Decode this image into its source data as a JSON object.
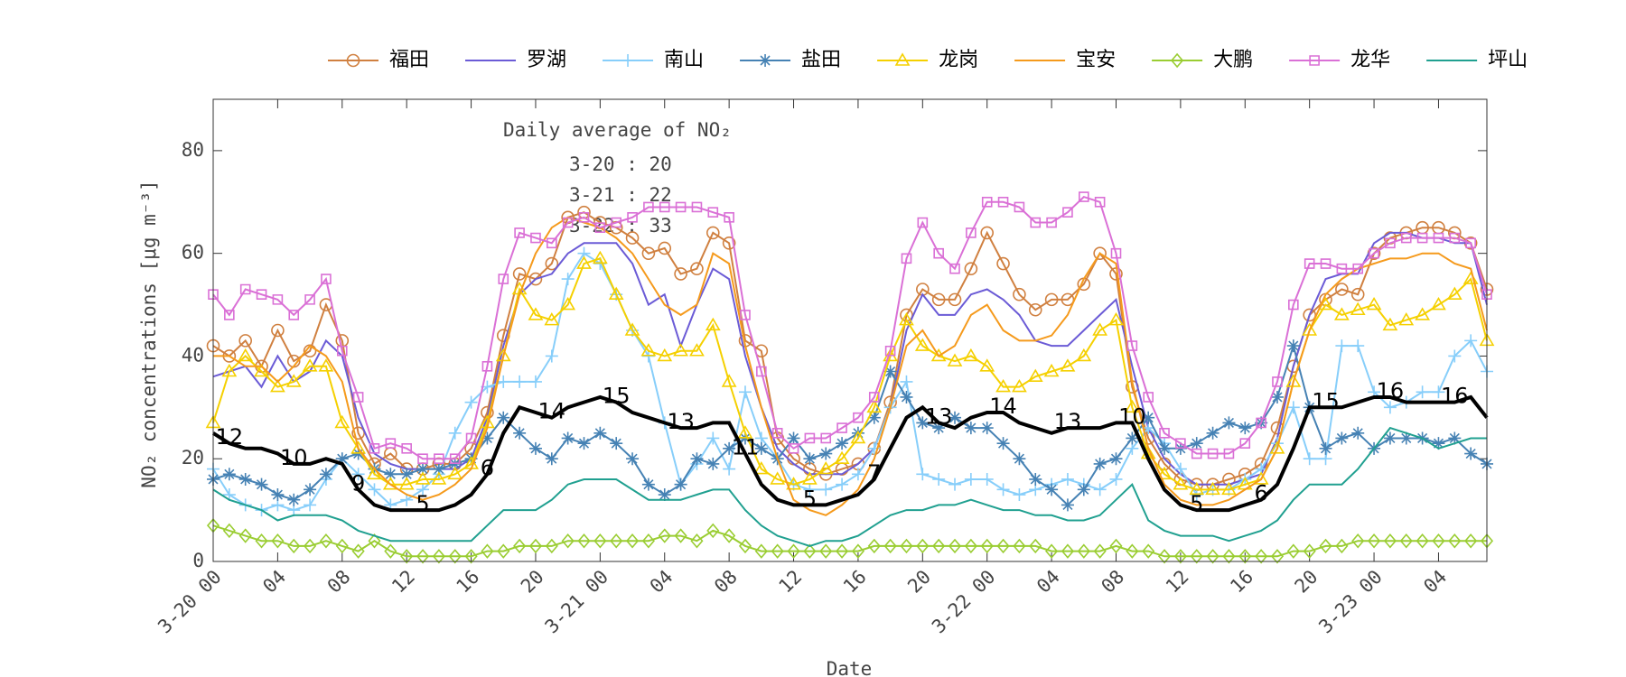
{
  "chart_data": {
    "type": "line",
    "xlabel": "Date",
    "ylabel": "NO₂ concentrations [μg m⁻³]",
    "box_title": "Daily average of NO₂",
    "box_lines": [
      "3-20 : 20",
      "3-21 : 22",
      "3-22 : 33"
    ],
    "xlim": [
      0,
      79
    ],
    "ylim": [
      0,
      90
    ],
    "yticks": [
      0,
      20,
      40,
      60,
      80
    ],
    "xticks": [
      {
        "value": 0,
        "label": "3-20 00"
      },
      {
        "value": 4,
        "label": "04"
      },
      {
        "value": 8,
        "label": "08"
      },
      {
        "value": 12,
        "label": "12"
      },
      {
        "value": 16,
        "label": "16"
      },
      {
        "value": 20,
        "label": "20"
      },
      {
        "value": 24,
        "label": "3-21 00"
      },
      {
        "value": 28,
        "label": "04"
      },
      {
        "value": 32,
        "label": "08"
      },
      {
        "value": 36,
        "label": "12"
      },
      {
        "value": 40,
        "label": "16"
      },
      {
        "value": 44,
        "label": "20"
      },
      {
        "value": 48,
        "label": "3-22 00"
      },
      {
        "value": 52,
        "label": "04"
      },
      {
        "value": 56,
        "label": "08"
      },
      {
        "value": 60,
        "label": "12"
      },
      {
        "value": 64,
        "label": "16"
      },
      {
        "value": 68,
        "label": "20"
      },
      {
        "value": 72,
        "label": "3-23 00"
      },
      {
        "value": 76,
        "label": "04"
      }
    ],
    "x": [
      0,
      1,
      2,
      3,
      4,
      5,
      6,
      7,
      8,
      9,
      10,
      11,
      12,
      13,
      14,
      15,
      16,
      17,
      18,
      19,
      20,
      21,
      22,
      23,
      24,
      25,
      26,
      27,
      28,
      29,
      30,
      31,
      32,
      33,
      34,
      35,
      36,
      37,
      38,
      39,
      40,
      41,
      42,
      43,
      44,
      45,
      46,
      47,
      48,
      49,
      50,
      51,
      52,
      53,
      54,
      55,
      56,
      57,
      58,
      59,
      60,
      61,
      62,
      63,
      64,
      65,
      66,
      67,
      68,
      69,
      70,
      71,
      72,
      73,
      74,
      75,
      76,
      77,
      78,
      79
    ],
    "series": [
      {
        "name": "福田",
        "color": "#d08040",
        "marker": "o",
        "values": [
          42,
          40,
          43,
          38,
          45,
          39,
          41,
          50,
          43,
          25,
          19,
          21,
          18,
          18,
          19,
          19,
          22,
          29,
          44,
          56,
          55,
          58,
          67,
          68,
          66,
          65,
          63,
          60,
          61,
          56,
          57,
          64,
          62,
          43,
          41,
          24,
          20,
          18,
          17,
          18,
          19,
          22,
          31,
          48,
          53,
          51,
          51,
          57,
          64,
          58,
          52,
          49,
          51,
          51,
          54,
          60,
          56,
          34,
          24,
          19,
          16,
          15,
          15,
          16,
          17,
          19,
          26,
          38,
          48,
          51,
          53,
          52,
          60,
          63,
          64,
          65,
          65,
          64,
          62,
          53
        ]
      },
      {
        "name": "罗湖",
        "color": "#6b5bd6",
        "marker": "none",
        "values": [
          36,
          37,
          38,
          34,
          40,
          35,
          37,
          43,
          40,
          28,
          21,
          19,
          18,
          18,
          18,
          18,
          20,
          28,
          42,
          52,
          55,
          56,
          60,
          62,
          62,
          62,
          58,
          50,
          52,
          42,
          50,
          57,
          55,
          40,
          30,
          22,
          19,
          17,
          17,
          17,
          19,
          22,
          30,
          45,
          52,
          48,
          48,
          52,
          53,
          51,
          48,
          43,
          42,
          42,
          45,
          48,
          51,
          38,
          26,
          20,
          17,
          15,
          15,
          15,
          16,
          17,
          24,
          38,
          48,
          55,
          56,
          56,
          62,
          64,
          64,
          63,
          63,
          62,
          62,
          50
        ]
      },
      {
        "name": "南山",
        "color": "#87cefa",
        "marker": "+",
        "values": [
          18,
          13,
          11,
          10,
          11,
          10,
          11,
          16,
          20,
          17,
          14,
          11,
          12,
          14,
          17,
          25,
          31,
          34,
          35,
          35,
          35,
          40,
          55,
          60,
          58,
          52,
          45,
          40,
          27,
          15,
          19,
          24,
          18,
          33,
          24,
          20,
          15,
          14,
          14,
          15,
          17,
          22,
          30,
          35,
          17,
          16,
          15,
          16,
          16,
          14,
          13,
          14,
          15,
          16,
          15,
          14,
          16,
          22,
          26,
          23,
          18,
          13,
          14,
          14,
          16,
          18,
          23,
          30,
          20,
          20,
          42,
          42,
          33,
          30,
          31,
          33,
          33,
          40,
          43,
          37
        ]
      },
      {
        "name": "盐田",
        "color": "#4682b4",
        "marker": "*",
        "values": [
          16,
          17,
          16,
          15,
          13,
          12,
          14,
          17,
          20,
          21,
          18,
          17,
          17,
          18,
          18,
          19,
          20,
          24,
          28,
          25,
          22,
          20,
          24,
          23,
          25,
          23,
          20,
          15,
          13,
          15,
          20,
          19,
          22,
          24,
          22,
          20,
          24,
          20,
          21,
          23,
          25,
          28,
          37,
          32,
          27,
          26,
          28,
          26,
          26,
          23,
          20,
          16,
          14,
          11,
          14,
          19,
          20,
          24,
          28,
          22,
          22,
          23,
          25,
          27,
          26,
          27,
          32,
          42,
          30,
          22,
          24,
          25,
          22,
          24,
          24,
          24,
          23,
          24,
          21,
          19
        ]
      },
      {
        "name": "龙岗",
        "color": "#f5d000",
        "marker": "^",
        "values": [
          27,
          37,
          40,
          37,
          34,
          35,
          38,
          38,
          27,
          22,
          17,
          15,
          15,
          16,
          16,
          17,
          19,
          27,
          40,
          53,
          48,
          47,
          50,
          58,
          59,
          52,
          45,
          41,
          40,
          41,
          41,
          46,
          35,
          25,
          18,
          16,
          15,
          16,
          18,
          20,
          24,
          30,
          40,
          47,
          42,
          40,
          39,
          40,
          38,
          34,
          34,
          36,
          37,
          38,
          40,
          45,
          47,
          30,
          21,
          17,
          15,
          14,
          14,
          14,
          15,
          16,
          22,
          35,
          45,
          50,
          48,
          49,
          50,
          46,
          47,
          48,
          50,
          52,
          55,
          43
        ]
      },
      {
        "name": "宝安",
        "color": "#f59a1c",
        "marker": "none",
        "values": [
          40,
          40,
          38,
          38,
          35,
          38,
          42,
          40,
          35,
          22,
          18,
          15,
          13,
          12,
          13,
          15,
          18,
          26,
          40,
          52,
          60,
          65,
          67,
          66,
          65,
          63,
          60,
          55,
          50,
          48,
          50,
          60,
          58,
          42,
          30,
          20,
          12,
          10,
          9,
          11,
          14,
          20,
          30,
          42,
          45,
          40,
          42,
          48,
          50,
          45,
          43,
          43,
          44,
          48,
          55,
          60,
          58,
          35,
          22,
          15,
          12,
          11,
          11,
          12,
          14,
          16,
          22,
          35,
          45,
          52,
          55,
          57,
          58,
          59,
          59,
          60,
          60,
          58,
          57,
          45
        ]
      },
      {
        "name": "大鹏",
        "color": "#9acd32",
        "marker": "d",
        "values": [
          7,
          6,
          5,
          4,
          4,
          3,
          3,
          4,
          3,
          2,
          4,
          2,
          1,
          1,
          1,
          1,
          1,
          2,
          2,
          3,
          3,
          3,
          4,
          4,
          4,
          4,
          4,
          4,
          5,
          5,
          4,
          6,
          5,
          3,
          2,
          2,
          2,
          2,
          2,
          2,
          2,
          3,
          3,
          3,
          3,
          3,
          3,
          3,
          3,
          3,
          3,
          3,
          2,
          2,
          2,
          2,
          3,
          2,
          2,
          1,
          1,
          1,
          1,
          1,
          1,
          1,
          1,
          2,
          2,
          3,
          3,
          4,
          4,
          4,
          4,
          4,
          4,
          4,
          4,
          4
        ]
      },
      {
        "name": "龙华",
        "color": "#da70d6",
        "marker": "s",
        "values": [
          52,
          48,
          53,
          52,
          51,
          48,
          51,
          55,
          41,
          32,
          22,
          23,
          22,
          20,
          20,
          20,
          24,
          38,
          55,
          64,
          63,
          62,
          66,
          67,
          65,
          66,
          67,
          69,
          69,
          69,
          69,
          68,
          67,
          48,
          37,
          25,
          22,
          24,
          24,
          26,
          28,
          32,
          41,
          59,
          66,
          60,
          57,
          64,
          70,
          70,
          69,
          66,
          66,
          68,
          71,
          70,
          60,
          42,
          32,
          25,
          23,
          21,
          21,
          21,
          23,
          27,
          35,
          50,
          58,
          58,
          57,
          57,
          60,
          62,
          63,
          63,
          63,
          63,
          62,
          52
        ]
      },
      {
        "name": "坪山",
        "color": "#20a090",
        "marker": "none",
        "values": [
          14,
          12,
          11,
          10,
          8,
          9,
          9,
          9,
          8,
          6,
          5,
          4,
          4,
          4,
          4,
          4,
          4,
          7,
          10,
          10,
          10,
          12,
          15,
          16,
          16,
          16,
          14,
          12,
          12,
          12,
          13,
          14,
          14,
          10,
          7,
          5,
          4,
          3,
          4,
          4,
          5,
          7,
          9,
          10,
          10,
          11,
          11,
          12,
          11,
          10,
          10,
          9,
          9,
          8,
          8,
          9,
          12,
          15,
          8,
          6,
          5,
          5,
          5,
          4,
          5,
          6,
          8,
          12,
          15,
          15,
          15,
          18,
          22,
          26,
          25,
          24,
          22,
          23,
          24,
          24
        ]
      }
    ],
    "average": {
      "color": "#000000",
      "values": [
        25,
        23,
        22,
        22,
        21,
        19,
        19,
        20,
        19,
        14,
        11,
        10,
        10,
        10,
        10,
        11,
        13,
        17,
        25,
        30,
        29,
        28,
        30,
        31,
        32,
        31,
        29,
        28,
        27,
        26,
        26,
        27,
        27,
        21,
        15,
        12,
        11,
        11,
        11,
        12,
        13,
        16,
        22,
        28,
        30,
        27,
        26,
        28,
        29,
        29,
        27,
        26,
        25,
        26,
        26,
        26,
        27,
        27,
        20,
        14,
        11,
        10,
        10,
        10,
        11,
        12,
        15,
        22,
        30,
        30,
        30,
        31,
        32,
        32,
        31,
        31,
        31,
        31,
        32,
        28
      ],
      "labels": [
        "12",
        "10",
        "9",
        "5",
        "6",
        "14",
        "15",
        "13",
        "11",
        "5",
        "7",
        "13",
        "14",
        "13",
        "10",
        "5",
        "6",
        "15",
        "16",
        "16"
      ]
    }
  }
}
